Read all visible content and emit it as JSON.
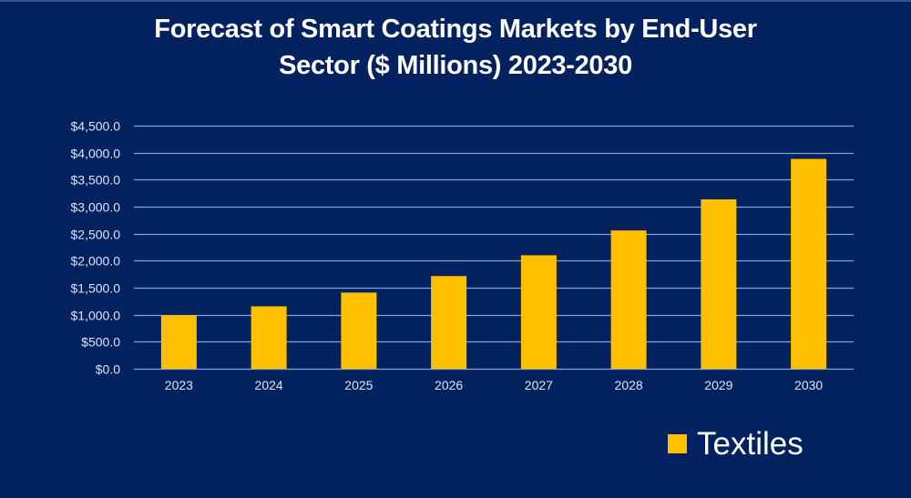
{
  "chart_data": {
    "type": "bar",
    "title": "Forecast of Smart Coatings Markets by End-User Sector ($ Millions) 2023-2030",
    "title_lines": [
      "Forecast of Smart Coatings Markets by End-User",
      "Sector ($ Millions) 2023-2030"
    ],
    "categories": [
      "2023",
      "2024",
      "2025",
      "2026",
      "2027",
      "2028",
      "2029",
      "2030"
    ],
    "series": [
      {
        "name": "Textiles",
        "values": [
          990,
          1155,
          1410,
          1715,
          2100,
          2560,
          3135,
          3885
        ],
        "color": "#FFC000"
      }
    ],
    "xlabel": "",
    "ylabel": "",
    "ylim": [
      0,
      4500
    ],
    "yticks": [
      0,
      500,
      1000,
      1500,
      2000,
      2500,
      3000,
      3500,
      4000,
      4500
    ],
    "ytick_labels": [
      "$0.0",
      "$500.0",
      "$1,000.0",
      "$1,500.0",
      "$2,000.0",
      "$2,500.0",
      "$3,000.0",
      "$3,500.0",
      "$4,000.0",
      "$4,500.0"
    ],
    "grid": true,
    "legend": {
      "position": "bottom-right",
      "entries": [
        "Textiles"
      ]
    },
    "colors": {
      "background": "#01215F",
      "gridline": "#8EA2CF",
      "text": "#DFE5F2"
    }
  }
}
